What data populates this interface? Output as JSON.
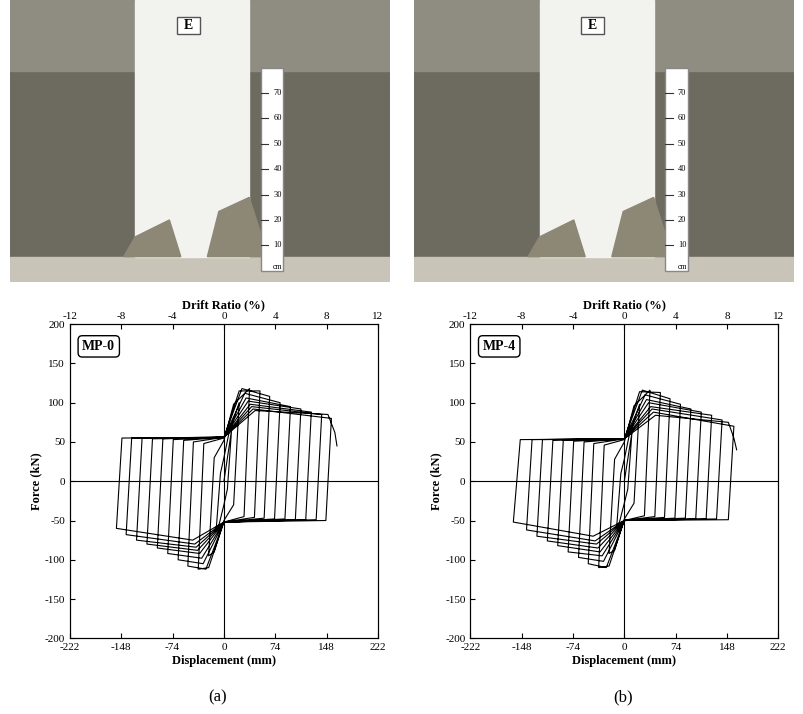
{
  "chart_data": [
    {
      "type": "line",
      "title": "MP-0",
      "x_label": "Displacement (mm)",
      "y_label": "Force (kN)",
      "x2_label": "Drift Ratio (%)",
      "color": "#000000",
      "xlim": [
        -222,
        222
      ],
      "xticks": [
        -222,
        -148,
        -74,
        0,
        74,
        148,
        222
      ],
      "x2lim": [
        -12,
        12
      ],
      "x2ticks": [
        -12,
        -8,
        -4,
        0,
        4,
        8,
        12
      ],
      "ylim": [
        -200,
        200
      ],
      "yticks": [
        -200,
        -150,
        -100,
        -50,
        0,
        50,
        100,
        150,
        200
      ],
      "x": [
        0,
        11,
        5,
        0,
        -7,
        -11,
        -5,
        0,
        7,
        22,
        14,
        0,
        -14,
        -22,
        -14,
        0,
        14,
        37,
        29,
        0,
        -22,
        -37,
        -29,
        0,
        22,
        52,
        44,
        0,
        -26,
        -52,
        -44,
        0,
        26,
        66,
        58,
        0,
        -30,
        -66,
        -58,
        0,
        30,
        81,
        73,
        0,
        -32,
        -81,
        -73,
        0,
        32,
        96,
        88,
        0,
        -35,
        -96,
        -88,
        0,
        35,
        111,
        103,
        0,
        -38,
        -111,
        -103,
        0,
        38,
        126,
        118,
        0,
        -40,
        -126,
        -118,
        0,
        40,
        141,
        133,
        0,
        -42,
        -141,
        -133,
        0,
        42,
        155,
        147,
        0,
        -45,
        -155,
        -147,
        0,
        45,
        150,
        160,
        163
      ],
      "values": [
        0,
        65,
        -10,
        -30,
        -55,
        -60,
        10,
        30,
        60,
        100,
        -30,
        -50,
        -90,
        -95,
        30,
        52,
        98,
        118,
        -45,
        -52,
        -110,
        -112,
        48,
        55,
        115,
        115,
        -46,
        -52,
        -112,
        -108,
        50,
        56,
        118,
        108,
        -47,
        -52,
        -105,
        -100,
        52,
        56,
        112,
        100,
        -48,
        -52,
        -98,
        -92,
        53,
        56,
        106,
        95,
        -48,
        -52,
        -92,
        -85,
        54,
        56,
        102,
        92,
        -49,
        -52,
        -88,
        -80,
        54,
        56,
        98,
        88,
        -49,
        -52,
        -84,
        -75,
        55,
        56,
        95,
        85,
        -49,
        -52,
        -80,
        -68,
        55,
        56,
        92,
        80,
        -50,
        -52,
        -75,
        -60,
        55,
        56,
        90,
        85,
        62,
        45
      ]
    },
    {
      "type": "line",
      "title": "MP-4",
      "x_label": "Displacement (mm)",
      "y_label": "Force (kN)",
      "x2_label": "Drift Ratio (%)",
      "color": "#000000",
      "xlim": [
        -222,
        222
      ],
      "xticks": [
        -222,
        -148,
        -74,
        0,
        74,
        148,
        222
      ],
      "x2lim": [
        -12,
        12
      ],
      "x2ticks": [
        -12,
        -8,
        -4,
        0,
        4,
        8,
        12
      ],
      "ylim": [
        -200,
        200
      ],
      "yticks": [
        -200,
        -150,
        -100,
        -50,
        0,
        50,
        100,
        150,
        200
      ],
      "x": [
        0,
        11,
        5,
        0,
        -7,
        -11,
        -5,
        0,
        7,
        22,
        14,
        0,
        -14,
        -22,
        -14,
        0,
        14,
        37,
        29,
        0,
        -22,
        -37,
        -29,
        0,
        22,
        52,
        44,
        0,
        -26,
        -52,
        -44,
        0,
        26,
        66,
        58,
        0,
        -30,
        -66,
        -58,
        0,
        30,
        81,
        73,
        0,
        -32,
        -81,
        -73,
        0,
        32,
        96,
        88,
        0,
        -35,
        -96,
        -88,
        0,
        35,
        111,
        103,
        0,
        -38,
        -111,
        -103,
        0,
        38,
        126,
        118,
        0,
        -40,
        -126,
        -118,
        0,
        40,
        141,
        133,
        0,
        -42,
        -141,
        -133,
        0,
        42,
        158,
        150,
        0,
        -45,
        -160,
        -150,
        0,
        45,
        150,
        158,
        162
      ],
      "values": [
        0,
        62,
        -10,
        -28,
        -52,
        -58,
        10,
        28,
        58,
        98,
        -28,
        -48,
        -88,
        -92,
        28,
        50,
        96,
        116,
        -44,
        -50,
        -108,
        -110,
        46,
        53,
        114,
        113,
        -45,
        -50,
        -110,
        -105,
        48,
        54,
        116,
        105,
        -46,
        -50,
        -102,
        -97,
        50,
        54,
        110,
        98,
        -47,
        -50,
        -95,
        -90,
        51,
        54,
        104,
        92,
        -47,
        -50,
        -90,
        -82,
        52,
        54,
        100,
        88,
        -48,
        -50,
        -85,
        -76,
        52,
        54,
        95,
        84,
        -48,
        -50,
        -80,
        -70,
        53,
        54,
        92,
        78,
        -48,
        -50,
        -76,
        -62,
        53,
        54,
        88,
        70,
        -49,
        -50,
        -70,
        -52,
        53,
        54,
        84,
        75,
        55,
        40
      ]
    }
  ],
  "photos": [
    {
      "column_label": "E",
      "scale_ticks": [
        10,
        20,
        30,
        40,
        50,
        60,
        70
      ],
      "scale_unit": "cm"
    },
    {
      "column_label": "E",
      "scale_ticks": [
        10,
        20,
        30,
        40,
        50,
        60,
        70
      ],
      "scale_unit": "cm"
    }
  ],
  "panel_labels": [
    "(a)",
    "(b)"
  ]
}
